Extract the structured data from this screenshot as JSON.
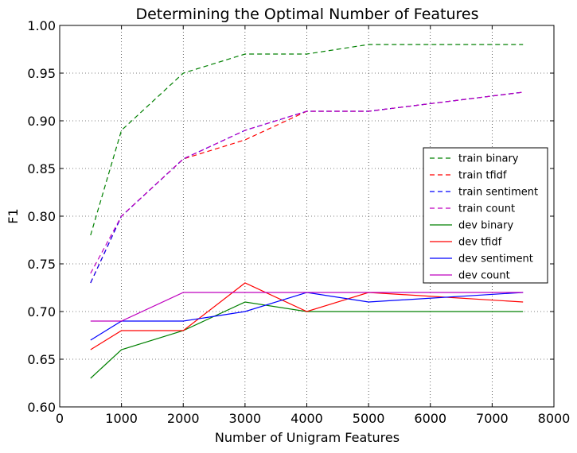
{
  "chart_data": {
    "type": "line",
    "title": "Determining the Optimal Number of Features",
    "xlabel": "Number of Unigram Features",
    "ylabel": "F1",
    "xlim": [
      0,
      8000
    ],
    "ylim": [
      0.6,
      1.0
    ],
    "xticks": [
      0,
      1000,
      2000,
      3000,
      4000,
      5000,
      6000,
      7000,
      8000
    ],
    "yticks": [
      0.6,
      0.65,
      0.7,
      0.75,
      0.8,
      0.85,
      0.9,
      0.95,
      1.0
    ],
    "xtick_labels": [
      "0",
      "1000",
      "2000",
      "3000",
      "4000",
      "5000",
      "6000",
      "7000",
      "8000"
    ],
    "ytick_labels": [
      "0.60",
      "0.65",
      "0.70",
      "0.75",
      "0.80",
      "0.85",
      "0.90",
      "0.95",
      "1.00"
    ],
    "grid": true,
    "legend_position": "right",
    "x": [
      500,
      1000,
      2000,
      3000,
      4000,
      5000,
      7500
    ],
    "series": [
      {
        "name": "train binary",
        "color": "#008000",
        "style": "dashed",
        "values": [
          0.78,
          0.89,
          0.95,
          0.97,
          0.97,
          0.98,
          0.98
        ]
      },
      {
        "name": "train tfidf",
        "color": "#ff0000",
        "style": "dashed",
        "values": [
          0.73,
          0.8,
          0.86,
          0.88,
          0.91,
          0.91,
          0.93
        ]
      },
      {
        "name": "train sentiment",
        "color": "#0000ff",
        "style": "dashed",
        "values": [
          0.73,
          0.8,
          0.86,
          0.89,
          0.91,
          0.91,
          0.93
        ]
      },
      {
        "name": "train count",
        "color": "#bf00bf",
        "style": "dashed",
        "values": [
          0.74,
          0.8,
          0.86,
          0.89,
          0.91,
          0.91,
          0.93
        ]
      },
      {
        "name": "dev binary",
        "color": "#008000",
        "style": "solid",
        "values": [
          0.63,
          0.66,
          0.68,
          0.71,
          0.7,
          0.7,
          0.7
        ]
      },
      {
        "name": "dev tfidf",
        "color": "#ff0000",
        "style": "solid",
        "values": [
          0.66,
          0.68,
          0.68,
          0.73,
          0.7,
          0.72,
          0.71
        ]
      },
      {
        "name": "dev sentiment",
        "color": "#0000ff",
        "style": "solid",
        "values": [
          0.67,
          0.69,
          0.69,
          0.7,
          0.72,
          0.71,
          0.72
        ]
      },
      {
        "name": "dev count",
        "color": "#bf00bf",
        "style": "solid",
        "values": [
          0.69,
          0.69,
          0.72,
          0.72,
          0.72,
          0.72,
          0.72
        ]
      }
    ]
  }
}
